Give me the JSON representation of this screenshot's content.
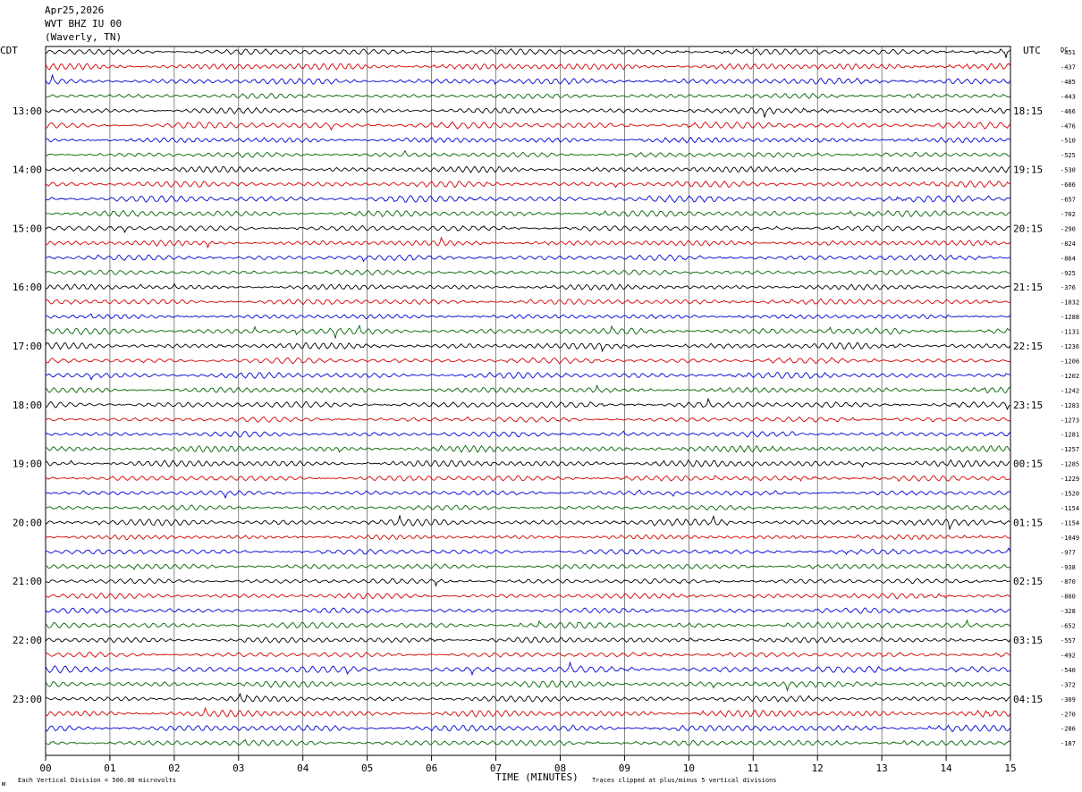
{
  "header": {
    "date": "Apr25,2026",
    "station": "WVT BHZ IU 00",
    "location": "(Waverly, TN)"
  },
  "labels": {
    "left_zone": "CDT",
    "right_zone": "UTC",
    "dc_label": "DC",
    "xlabel": "TIME (MINUTES)",
    "scale_note": "Each Vertical Division =  500.00 microvolts",
    "clip_note": "Traces clipped at plus/minus 5 vertical divisions",
    "corner_mark": "ᴍ"
  },
  "colors": {
    "cycle": [
      "#000000",
      "#d40000",
      "#0000d4",
      "#006400"
    ],
    "grid": "#000000"
  },
  "chart_data": {
    "type": "line",
    "title": "",
    "xlabel": "TIME (MINUTES)",
    "ylabel": "",
    "x_range": [
      0,
      15
    ],
    "x_ticks": [
      "00",
      "01",
      "02",
      "03",
      "04",
      "05",
      "06",
      "07",
      "08",
      "09",
      "10",
      "11",
      "12",
      "13",
      "14",
      "15"
    ],
    "grid": "vertical",
    "trace_minutes": 15,
    "trace_count": 48,
    "left_hour_labels": [
      "13:00",
      "14:00",
      "15:00",
      "16:00",
      "17:00",
      "18:00",
      "19:00",
      "20:00",
      "21:00",
      "22:00",
      "23:00"
    ],
    "right_hour_labels": [
      "18:15",
      "19:15",
      "20:15",
      "21:15",
      "22:15",
      "23:15",
      "00:15",
      "01:15",
      "02:15",
      "03:15",
      "04:15"
    ],
    "dc_offsets": [
      -451,
      -437,
      -485,
      -443,
      -466,
      -476,
      -510,
      -525,
      -530,
      -606,
      -657,
      -702,
      -290,
      -824,
      -864,
      -925,
      -376,
      -1032,
      -1288,
      -1131,
      -1236,
      -1206,
      -1202,
      -1242,
      -1283,
      -1273,
      -1281,
      -1257,
      -1285,
      -1229,
      -1520,
      -1154,
      -1154,
      -1049,
      -977,
      -938,
      -870,
      -800,
      -328,
      -652,
      -557,
      -492,
      -540,
      -372,
      -309,
      -270,
      -286,
      -187
    ],
    "units": "microvolts"
  }
}
